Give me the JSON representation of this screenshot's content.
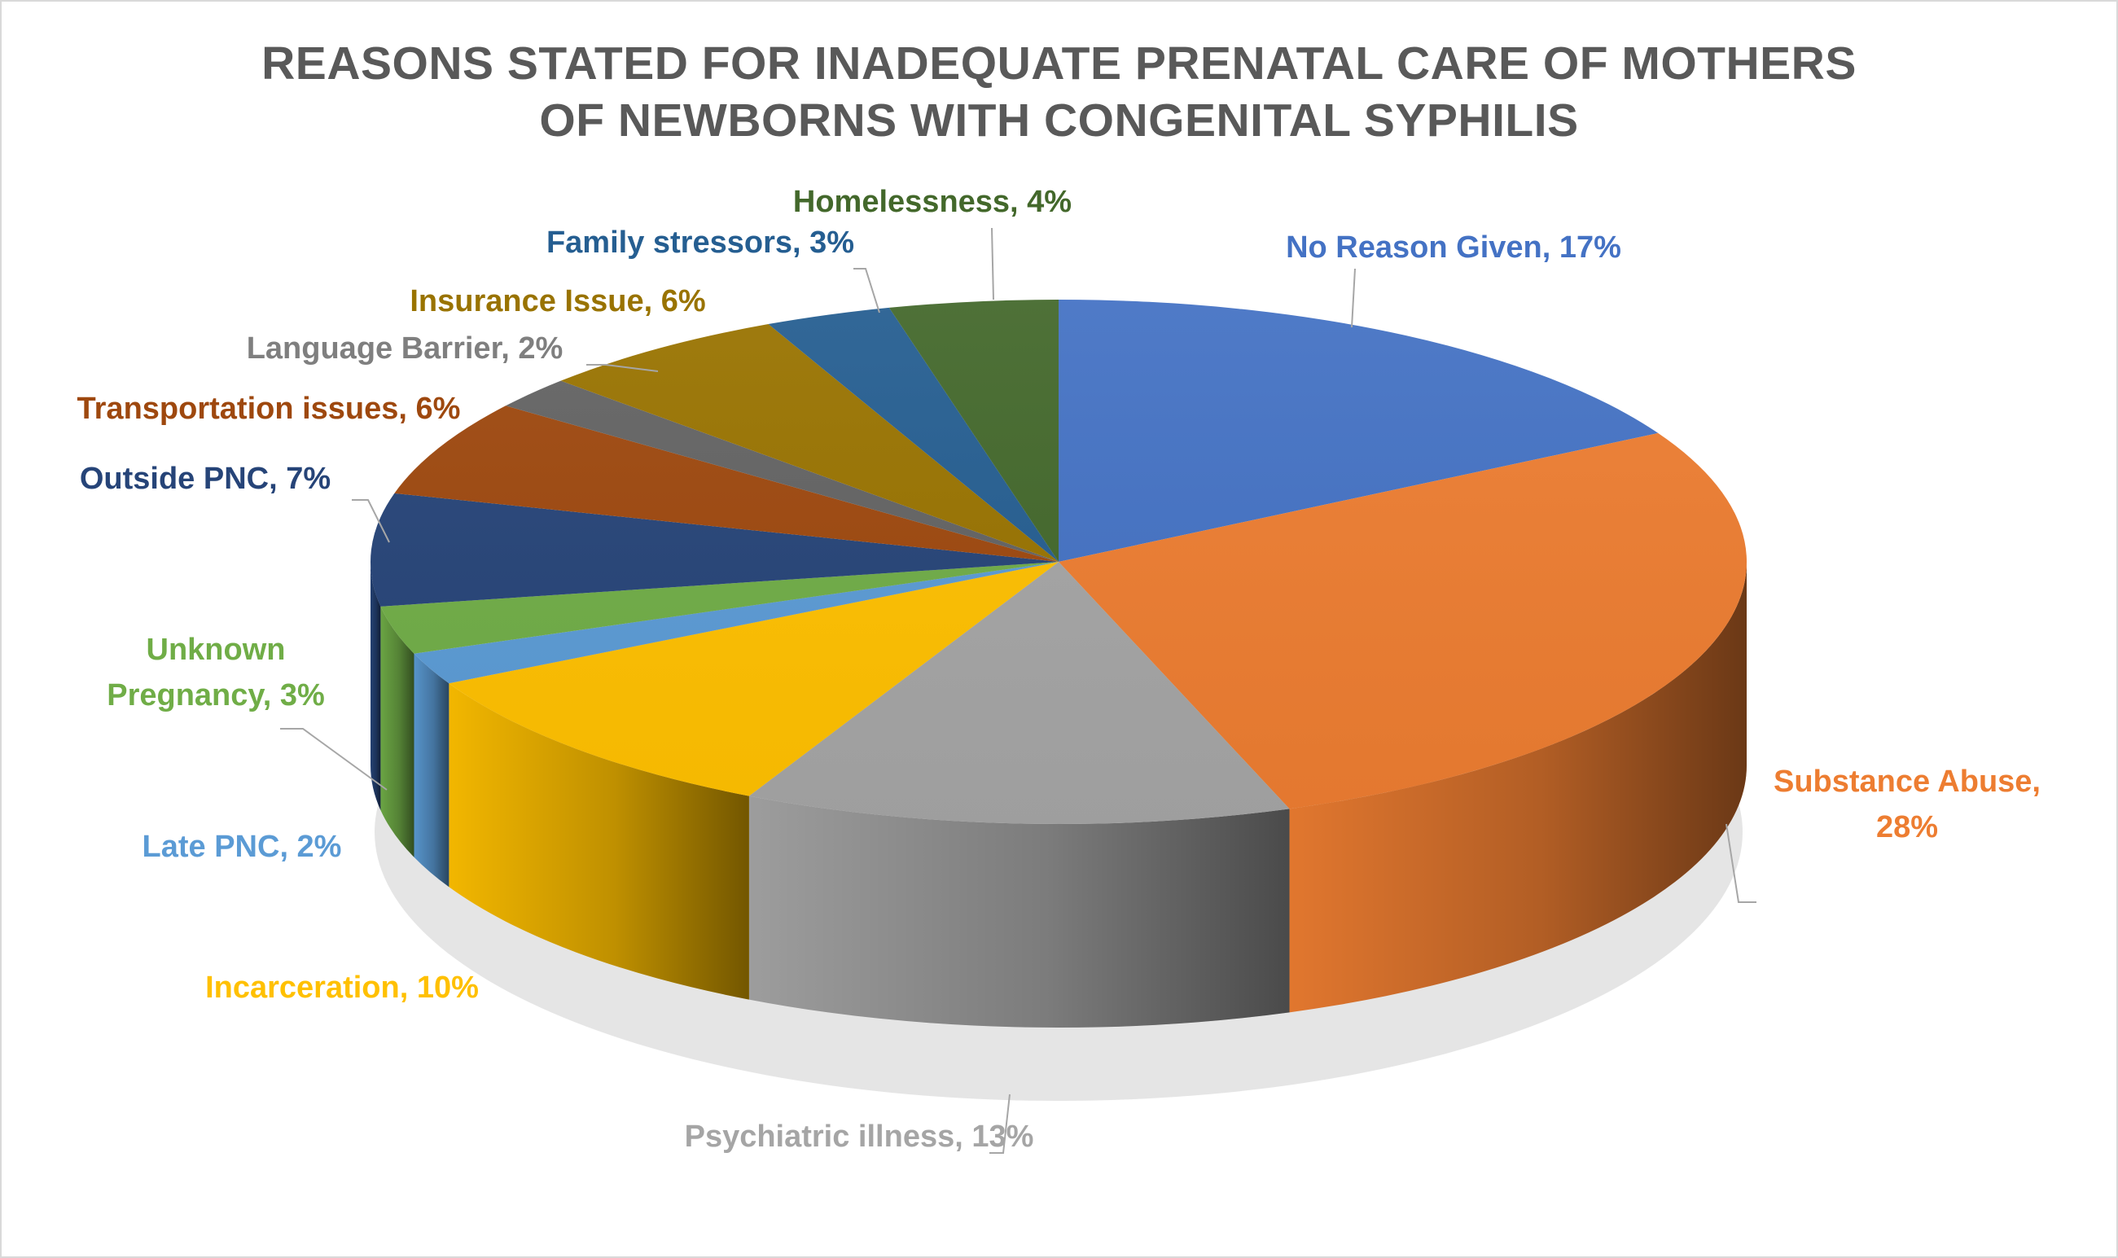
{
  "chart_data": {
    "type": "pie",
    "style": "3d",
    "title_lines": [
      "REASONS STATED FOR INADEQUATE PRENATAL CARE OF MOTHERS",
      "OF NEWBORNS WITH CONGENITAL SYPHILIS"
    ],
    "legend": "none",
    "slices": [
      {
        "label": "No Reason Given",
        "value": 17,
        "display": "No Reason Given, 17%",
        "color": "#4472C4"
      },
      {
        "label": "Substance Abuse",
        "value": 28,
        "display": "Substance Abuse,|28%",
        "color": "#ED7D31"
      },
      {
        "label": "Psychiatric illness",
        "value": 13,
        "display": "Psychiatric illness, 13%",
        "color": "#A5A5A5"
      },
      {
        "label": "Incarceration",
        "value": 10,
        "display": "Incarceration, 10%",
        "color": "#FFC000"
      },
      {
        "label": "Late PNC",
        "value": 2,
        "display": "Late PNC, 2%",
        "color": "#5B9BD5"
      },
      {
        "label": "Unknown Pregnancy",
        "value": 3,
        "display": "Unknown|Pregnancy, 3%",
        "color": "#70AD47"
      },
      {
        "label": "Outside PNC",
        "value": 7,
        "display": "Outside PNC, 7%",
        "color": "#264478"
      },
      {
        "label": "Transportation issues",
        "value": 6,
        "display": "Transportation issues, 6%",
        "color": "#9E480E"
      },
      {
        "label": "Language Barrier",
        "value": 2,
        "display": "Language Barrier, 2%",
        "color": "#636363"
      },
      {
        "label": "Insurance Issue",
        "value": 6,
        "display": "Insurance Issue, 6%",
        "color": "#997300"
      },
      {
        "label": "Family stressors",
        "value": 3,
        "display": "Family stressors, 3%",
        "color": "#255E91"
      },
      {
        "label": "Homelessness",
        "value": 4,
        "display": "Homelessness, 4%",
        "color": "#43682B"
      }
    ]
  }
}
